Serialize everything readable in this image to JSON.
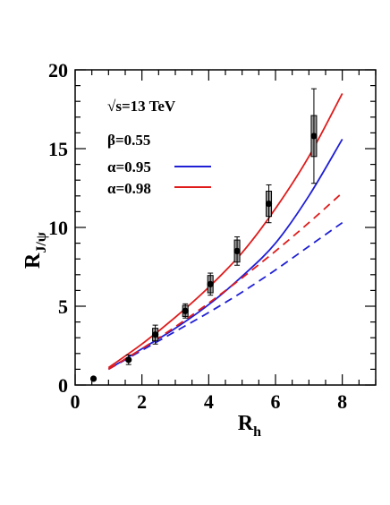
{
  "chart_data": {
    "type": "line",
    "xlabel": "R",
    "xlabel_sub": "h",
    "ylabel": "R",
    "ylabel_sub": "J/ψ",
    "xlim": [
      0,
      9
    ],
    "ylim": [
      0,
      20
    ],
    "xticks": [
      "0",
      "2",
      "4",
      "6",
      "8"
    ],
    "yticks": [
      "0",
      "5",
      "10",
      "15",
      "20"
    ],
    "xtick_values": [
      0,
      2,
      4,
      6,
      8
    ],
    "ytick_values": [
      0,
      5,
      10,
      15,
      20
    ],
    "annotations": {
      "energy": "√s=13 TeV",
      "beta": "β=0.55"
    },
    "legend": [
      {
        "label": "α=0.95",
        "color": "#1f1fd6"
      },
      {
        "label": "α=0.98",
        "color": "#e01b1b"
      }
    ],
    "series": [
      {
        "name": "α=0.95",
        "style": "solid",
        "color": "#1f1fd6",
        "x": [
          1,
          2,
          3,
          4,
          5,
          6,
          7,
          8
        ],
        "y": [
          1.0,
          2.3,
          3.6,
          5.1,
          6.9,
          9.0,
          12.0,
          15.6
        ]
      },
      {
        "name": "α=0.98",
        "style": "solid",
        "color": "#e01b1b",
        "x": [
          1,
          2,
          3,
          4,
          5,
          6,
          7,
          8
        ],
        "y": [
          1.1,
          2.6,
          4.3,
          6.2,
          8.4,
          11.2,
          14.5,
          18.5
        ]
      },
      {
        "style": "dashed",
        "color": "#1f1fd6",
        "x": [
          1,
          2,
          3,
          4,
          5,
          6,
          7,
          8
        ],
        "y": [
          1.0,
          2.2,
          3.4,
          4.6,
          5.9,
          7.3,
          8.8,
          10.3
        ]
      },
      {
        "style": "dashed",
        "color": "#e01b1b",
        "x": [
          1,
          2,
          3,
          4,
          5,
          6,
          7,
          8
        ],
        "y": [
          1.0,
          2.3,
          3.7,
          5.2,
          6.8,
          8.5,
          10.3,
          12.2
        ]
      }
    ],
    "points": [
      {
        "x": 0.55,
        "y": 0.4,
        "err": 0.0,
        "sys": 0.0
      },
      {
        "x": 1.6,
        "y": 1.6,
        "err": 0.3,
        "sys": 0.0
      },
      {
        "x": 2.4,
        "y": 3.2,
        "err": 0.6,
        "sys": 0.4
      },
      {
        "x": 3.3,
        "y": 4.7,
        "err": 0.45,
        "sys": 0.35
      },
      {
        "x": 4.05,
        "y": 6.4,
        "err": 0.7,
        "sys": 0.55
      },
      {
        "x": 4.85,
        "y": 8.5,
        "err": 0.9,
        "sys": 0.7
      },
      {
        "x": 5.8,
        "y": 11.5,
        "err": 1.2,
        "sys": 0.8
      },
      {
        "x": 7.15,
        "y": 15.8,
        "err": 3.0,
        "sys": 1.3
      }
    ]
  }
}
